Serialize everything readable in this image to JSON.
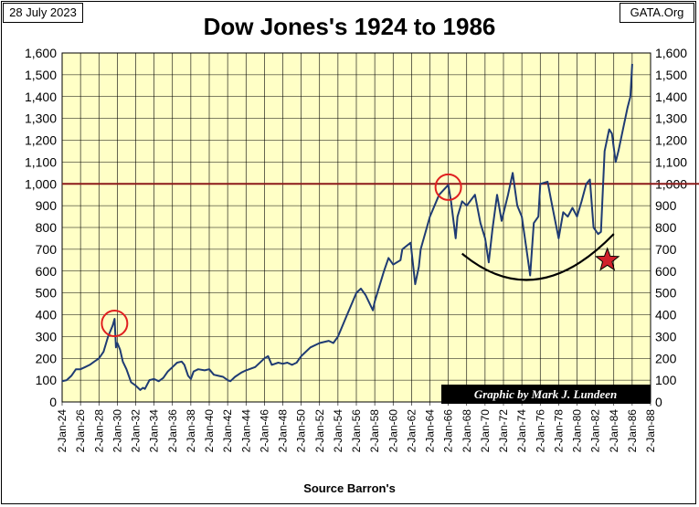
{
  "header": {
    "date": "28 July 2023",
    "source": "GATA.Org",
    "title": "Dow Jones's 1924 to 1986"
  },
  "footer": {
    "source_label": "Source Barron's"
  },
  "colors": {
    "plot_background": "#ffffc6",
    "line": "#1f3b73",
    "reference_line": "#8b1a1a",
    "circle": "#e02020",
    "star": "#d0202a",
    "curve": "#000000"
  },
  "chart_data": {
    "type": "line",
    "title": "Dow Jones's 1924 to 1986",
    "xlabel": "",
    "ylabel": "",
    "xlim": [
      1924,
      1988
    ],
    "ylim": [
      0,
      1600
    ],
    "y_ticks": [
      "0",
      "100",
      "200",
      "300",
      "400",
      "500",
      "600",
      "700",
      "800",
      "900",
      "1,000",
      "1,100",
      "1,200",
      "1,300",
      "1,400",
      "1,500",
      "1,600"
    ],
    "x_ticks": [
      "2-Jan-24",
      "2-Jan-26",
      "2-Jan-28",
      "2-Jan-30",
      "2-Jan-32",
      "2-Jan-34",
      "2-Jan-36",
      "2-Jan-38",
      "2-Jan-40",
      "2-Jan-42",
      "2-Jan-44",
      "2-Jan-46",
      "2-Jan-48",
      "2-Jan-50",
      "2-Jan-52",
      "2-Jan-54",
      "2-Jan-56",
      "2-Jan-58",
      "2-Jan-60",
      "2-Jan-62",
      "2-Jan-64",
      "2-Jan-66",
      "2-Jan-68",
      "2-Jan-70",
      "2-Jan-72",
      "2-Jan-74",
      "2-Jan-76",
      "2-Jan-78",
      "2-Jan-80",
      "2-Jan-82",
      "2-Jan-84",
      "2-Jan-86",
      "2-Jan-88"
    ],
    "grid": true,
    "reference_line": 1000,
    "annotation": "Graphic by Mark J. Lundeen",
    "series": [
      {
        "x": [
          1924.0,
          1924.5,
          1925.0,
          1925.5,
          1926.0,
          1926.5,
          1927.0,
          1927.5,
          1928.0,
          1928.5,
          1929.0,
          1929.5,
          1929.7,
          1929.85,
          1930.0,
          1930.3,
          1930.6,
          1931.0,
          1931.5,
          1932.0,
          1932.5,
          1932.8,
          1933.0,
          1933.5,
          1934.0,
          1934.5,
          1935.0,
          1935.5,
          1936.0,
          1936.5,
          1937.0,
          1937.3,
          1937.7,
          1938.0,
          1938.3,
          1938.8,
          1939.5,
          1940.0,
          1940.5,
          1941.0,
          1941.5,
          1942.0,
          1942.3,
          1942.8,
          1943.5,
          1944.0,
          1945.0,
          1946.0,
          1946.4,
          1946.8,
          1947.5,
          1948.0,
          1948.5,
          1949.0,
          1949.5,
          1950.0,
          1951.0,
          1952.0,
          1953.0,
          1953.5,
          1954.0,
          1955.0,
          1956.0,
          1956.5,
          1957.0,
          1957.8,
          1958.0,
          1959.0,
          1959.5,
          1960.0,
          1960.8,
          1961.0,
          1961.9,
          1962.4,
          1962.8,
          1963.0,
          1964.0,
          1965.0,
          1966.0,
          1966.3,
          1966.8,
          1967.0,
          1967.5,
          1968.0,
          1968.9,
          1969.5,
          1970.0,
          1970.4,
          1970.8,
          1971.3,
          1971.8,
          1972.5,
          1973.0,
          1973.5,
          1974.0,
          1974.5,
          1974.9,
          1975.3,
          1975.8,
          1976.0,
          1976.8,
          1977.3,
          1978.0,
          1978.5,
          1979.0,
          1979.5,
          1980.0,
          1980.5,
          1981.0,
          1981.4,
          1981.8,
          1982.3,
          1982.6,
          1983.0,
          1983.5,
          1983.8,
          1984.2,
          1984.5,
          1985.0,
          1985.5,
          1985.8,
          1986.0
        ],
        "values": [
          95,
          100,
          120,
          150,
          150,
          160,
          170,
          185,
          200,
          230,
          300,
          350,
          381,
          250,
          270,
          240,
          185,
          150,
          90,
          75,
          55,
          65,
          60,
          100,
          105,
          95,
          110,
          140,
          160,
          180,
          185,
          170,
          120,
          105,
          140,
          150,
          145,
          150,
          125,
          120,
          115,
          100,
          95,
          115,
          135,
          145,
          160,
          200,
          210,
          170,
          180,
          175,
          180,
          170,
          180,
          210,
          250,
          270,
          280,
          270,
          300,
          400,
          500,
          520,
          490,
          420,
          460,
          600,
          660,
          630,
          650,
          700,
          730,
          540,
          620,
          700,
          850,
          950,
          995,
          920,
          750,
          850,
          920,
          900,
          950,
          820,
          750,
          640,
          790,
          950,
          830,
          950,
          1050,
          900,
          850,
          700,
          580,
          820,
          850,
          1000,
          1010,
          900,
          750,
          870,
          850,
          890,
          850,
          920,
          1000,
          1020,
          800,
          770,
          780,
          1150,
          1250,
          1230,
          1100,
          1150,
          1250,
          1350,
          1400,
          1550
        ]
      }
    ]
  }
}
